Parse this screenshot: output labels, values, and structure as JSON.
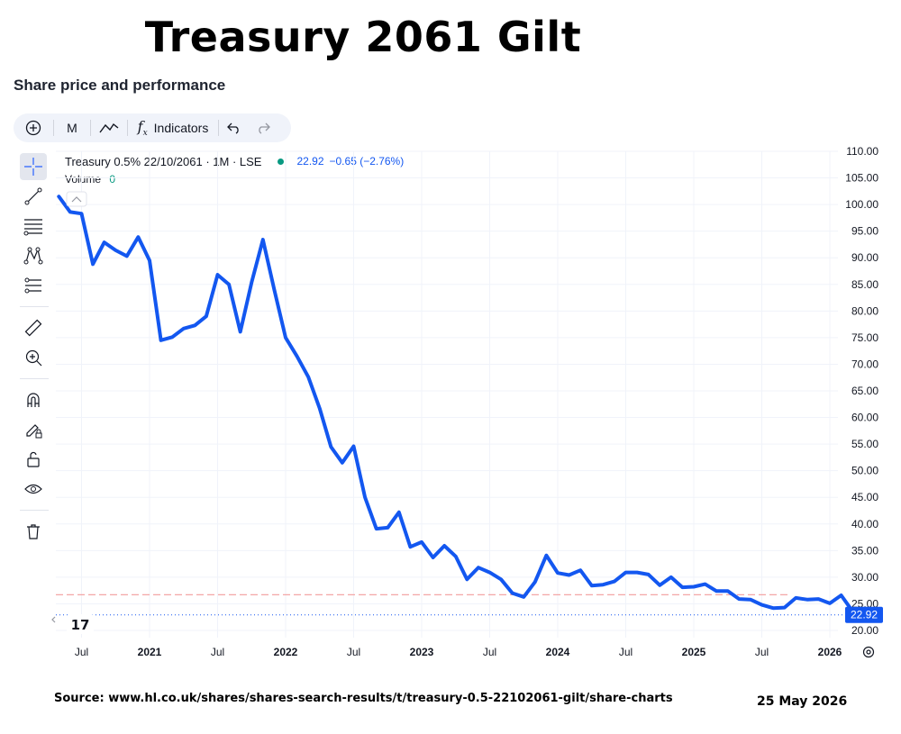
{
  "header": {
    "title": "Treasury 2061 Gilt",
    "section_title": "Share price and performance"
  },
  "toolbar": {
    "add_icon": "plus-circle-icon",
    "interval_label": "M",
    "chart_type_icon": "line-chart-icon",
    "indicators_label": "Indicators",
    "undo_icon": "undo-icon",
    "redo_icon": "redo-icon"
  },
  "sidebar": {
    "tools": [
      "crosshair-icon",
      "trend-line-icon",
      "fib-levels-icon",
      "pattern-icon",
      "prediction-icon",
      "ruler-icon",
      "zoom-in-icon",
      "magnet-icon",
      "lock-draw-icon",
      "unlock-icon",
      "eye-icon",
      "trash-icon"
    ]
  },
  "legend": {
    "symbol_line": "Treasury 0.5% 22/10/2061 · 1M · LSE",
    "last_price": "22.92",
    "change": "−0.65 (−2.76%)",
    "volume_label": "Volume",
    "volume_value": "0",
    "status_color": "#089981"
  },
  "footer": {
    "source": "Source: www.hl.co.uk/shares/shares-search-results/t/treasury-0.5-22102061-gilt/share-charts",
    "date": "25 May 2026"
  },
  "colors": {
    "line": "#1357f0",
    "price_label": "#1357f0",
    "reference_line": "#f3a6a6"
  },
  "chart_data": {
    "type": "line",
    "title": "",
    "xlabel": "",
    "ylabel": "",
    "ylim": [
      20,
      110
    ],
    "y_ticks": [
      "110.00",
      "105.00",
      "100.00",
      "95.00",
      "90.00",
      "85.00",
      "80.00",
      "75.00",
      "70.00",
      "65.00",
      "60.00",
      "55.00",
      "50.00",
      "45.00",
      "40.00",
      "35.00",
      "30.00",
      "25.00",
      "20.00"
    ],
    "x_ticks": [
      {
        "label": "Jul",
        "date": "2020-07"
      },
      {
        "label": "2021",
        "date": "2021-01"
      },
      {
        "label": "Jul",
        "date": "2021-07"
      },
      {
        "label": "2022",
        "date": "2022-01"
      },
      {
        "label": "Jul",
        "date": "2022-07"
      },
      {
        "label": "2023",
        "date": "2023-01"
      },
      {
        "label": "Jul",
        "date": "2023-07"
      },
      {
        "label": "2024",
        "date": "2024-01"
      },
      {
        "label": "Jul",
        "date": "2024-07"
      },
      {
        "label": "2025",
        "date": "2025-01"
      },
      {
        "label": "Jul",
        "date": "2025-07"
      },
      {
        "label": "2026",
        "date": "2026-01"
      }
    ],
    "last_value_label": "22.92",
    "reference_value": 26.7,
    "grid": true,
    "series": [
      {
        "x": [
          "2020-05",
          "2020-06",
          "2020-07",
          "2020-08",
          "2020-09",
          "2020-10",
          "2020-11",
          "2020-12",
          "2021-01",
          "2021-02",
          "2021-03",
          "2021-04",
          "2021-05",
          "2021-06",
          "2021-07",
          "2021-08",
          "2021-09",
          "2021-10",
          "2021-11",
          "2021-12",
          "2022-01",
          "2022-02",
          "2022-03",
          "2022-04",
          "2022-05",
          "2022-06",
          "2022-07",
          "2022-08",
          "2022-09",
          "2022-10",
          "2022-11",
          "2022-12",
          "2023-01",
          "2023-02",
          "2023-03",
          "2023-04",
          "2023-05",
          "2023-06",
          "2023-07",
          "2023-08",
          "2023-09",
          "2023-10",
          "2023-11",
          "2023-12",
          "2024-01",
          "2024-02",
          "2024-03",
          "2024-04",
          "2024-05",
          "2024-06",
          "2024-07",
          "2024-08",
          "2024-09",
          "2024-10",
          "2024-11",
          "2024-12",
          "2025-01",
          "2025-02",
          "2025-03",
          "2025-04",
          "2025-05",
          "2025-06",
          "2025-07",
          "2025-08",
          "2025-09",
          "2025-10",
          "2025-11",
          "2025-12",
          "2026-01",
          "2026-02",
          "2026-03",
          "2026-04",
          "2026-05"
        ],
        "values": [
          101.5,
          98.6,
          98.3,
          88.8,
          92.9,
          91.4,
          90.3,
          93.9,
          89.5,
          74.5,
          75.1,
          76.7,
          77.3,
          79.0,
          86.8,
          85.0,
          76.1,
          85.4,
          93.4,
          84.0,
          75.0,
          71.5,
          67.6,
          61.7,
          54.5,
          51.5,
          54.6,
          45.0,
          39.1,
          39.3,
          42.2,
          35.7,
          36.6,
          33.7,
          35.9,
          33.9,
          29.6,
          31.8,
          30.9,
          29.6,
          27.0,
          26.3,
          29.1,
          34.1,
          30.8,
          30.4,
          31.3,
          28.4,
          28.6,
          29.2,
          30.9,
          30.9,
          30.5,
          28.5,
          30.0,
          28.1,
          28.2,
          28.7,
          27.4,
          27.4,
          25.9,
          25.8,
          24.8,
          24.2,
          24.3,
          26.1,
          25.8,
          25.9,
          25.1,
          26.6,
          23.6,
          23.2,
          22.92
        ]
      }
    ]
  }
}
